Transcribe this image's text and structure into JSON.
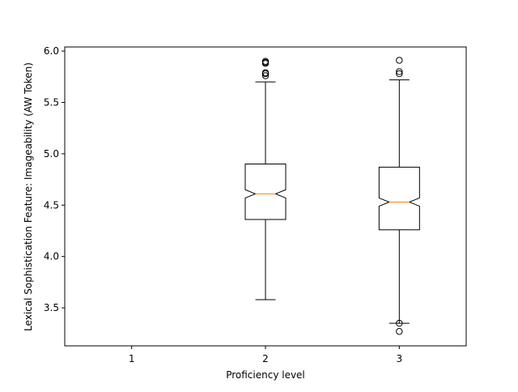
{
  "chart_data": {
    "type": "boxplot",
    "notched": true,
    "title": "",
    "xlabel": "Proficiency level",
    "ylabel": "Lexical Sophistication Feature: Imageability (AW Token)",
    "categories": [
      "1",
      "2",
      "3"
    ],
    "ylim": [
      3.13,
      6.04
    ],
    "yticks": [
      3.5,
      4.0,
      4.5,
      5.0,
      5.5,
      6.0
    ],
    "ytick_labels": [
      "3.5",
      "4.0",
      "4.5",
      "5.0",
      "5.5",
      "6.0"
    ],
    "grid": false,
    "box_color": "#000000",
    "median_color": "#ff7f0e",
    "boxes": [
      {
        "category": "1"
      },
      {
        "category": "2",
        "whislo": 3.58,
        "q1": 4.36,
        "med": 4.61,
        "q3": 4.9,
        "whishi": 5.7,
        "notch_low": 4.57,
        "notch_high": 4.65,
        "fliers": [
          5.76,
          5.78,
          5.79,
          5.88,
          5.89,
          5.9
        ]
      },
      {
        "category": "3",
        "whislo": 3.35,
        "q1": 4.26,
        "med": 4.53,
        "q3": 4.87,
        "whishi": 5.72,
        "notch_low": 4.49,
        "notch_high": 4.57,
        "fliers": [
          3.27,
          3.35,
          5.78,
          5.8,
          5.91
        ]
      }
    ]
  }
}
